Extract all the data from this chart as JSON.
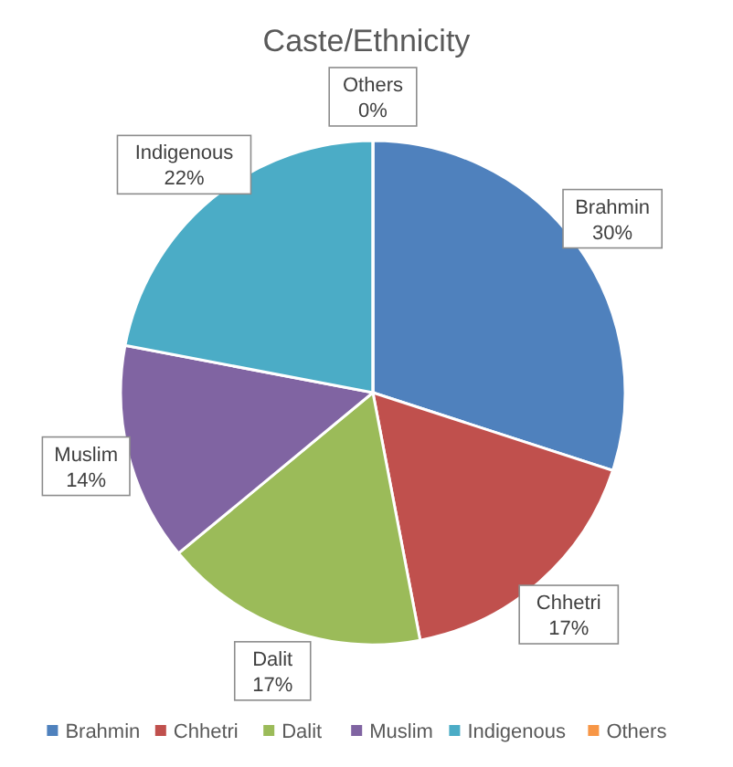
{
  "chart_data": {
    "type": "pie",
    "title": "Caste/Ethnicity",
    "categories": [
      "Brahmin",
      "Chhetri",
      "Dalit",
      "Muslim",
      "Indigenous",
      "Others"
    ],
    "values": [
      30,
      17,
      17,
      14,
      22,
      0
    ],
    "value_labels": [
      "30%",
      "17%",
      "17%",
      "14%",
      "22%",
      "0%"
    ],
    "colors": [
      "#4f81bd",
      "#c0504d",
      "#9bbb59",
      "#8064a2",
      "#4bacc6",
      "#f79646"
    ],
    "legend": "bottom"
  }
}
